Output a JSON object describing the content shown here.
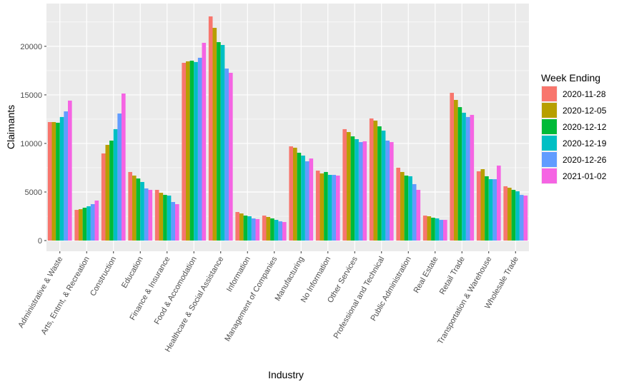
{
  "chart_data": {
    "type": "bar",
    "title": "",
    "xlabel": "Industry",
    "ylabel": "Claimants",
    "ylim": [
      -1100,
      24400
    ],
    "yticks": [
      0,
      5000,
      10000,
      15000,
      20000
    ],
    "grid": true,
    "legend_title": "Week Ending",
    "legend_position": "right",
    "categories": [
      "Administrative & Waste",
      "Arts, Entmt, & Recreation",
      "Construction",
      "Education",
      "Finance & Insurance",
      "Food & Accomodation",
      "Healthcare & Social Assistance",
      "Information",
      "Management of Companies",
      "Manufacturing",
      "No Information",
      "Other Services",
      "Professional and Technical",
      "Public Administration",
      "Real Estate",
      "Retail Trade",
      "Transportation & Warehouse",
      "Wholesale Trade"
    ],
    "series": [
      {
        "name": "2020-11-28",
        "color": "#F8766D",
        "values": [
          12200,
          3160,
          8970,
          7060,
          5220,
          18300,
          23080,
          2940,
          2570,
          9700,
          7200,
          11470,
          12570,
          7500,
          2570,
          15210,
          7130,
          5590
        ]
      },
      {
        "name": "2020-12-05",
        "color": "#B79F00",
        "values": [
          12200,
          3230,
          9850,
          6690,
          4920,
          18450,
          21900,
          2790,
          2430,
          9560,
          6910,
          11170,
          12350,
          7060,
          2500,
          14480,
          7350,
          5440
        ]
      },
      {
        "name": "2020-12-12",
        "color": "#00BA38",
        "values": [
          12130,
          3380,
          10290,
          6390,
          4700,
          18520,
          20430,
          2570,
          2280,
          9040,
          7060,
          10730,
          11760,
          6690,
          2350,
          13740,
          6620,
          5220
        ]
      },
      {
        "name": "2020-12-19",
        "color": "#00BFC4",
        "values": [
          12720,
          3530,
          11470,
          6030,
          4630,
          18380,
          20140,
          2500,
          2130,
          8750,
          6760,
          10440,
          11320,
          6620,
          2280,
          13160,
          6320,
          5070
        ]
      },
      {
        "name": "2020-12-26",
        "color": "#619CFF",
        "values": [
          13300,
          3750,
          13080,
          5370,
          3970,
          18820,
          17710,
          2280,
          1980,
          8160,
          6760,
          10140,
          10290,
          5810,
          2130,
          12720,
          6320,
          4700
        ]
      },
      {
        "name": "2021-01-02",
        "color": "#F564E3",
        "values": [
          14410,
          4120,
          15140,
          5220,
          3750,
          20360,
          17270,
          2210,
          1910,
          8450,
          6690,
          10220,
          10140,
          5220,
          2130,
          12940,
          7720,
          4630
        ]
      }
    ]
  }
}
